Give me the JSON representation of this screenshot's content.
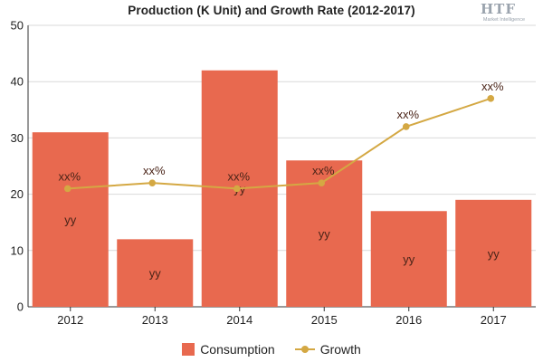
{
  "chart_data": {
    "type": "bar",
    "title": "Production (K Unit) and Growth Rate (2012-2017)",
    "categories": [
      "2012",
      "2013",
      "2014",
      "2015",
      "2016",
      "2017"
    ],
    "ylim": [
      0,
      50
    ],
    "yticks": [
      0,
      10,
      20,
      30,
      40,
      50
    ],
    "grid": true,
    "legend_position": "bottom",
    "series": [
      {
        "name": "Consumption",
        "type": "bar",
        "color": "#e8694f",
        "values": [
          31,
          12,
          42,
          26,
          17,
          19
        ],
        "labels": [
          "yy",
          "yy",
          "yy",
          "yy",
          "yy",
          "yy"
        ]
      },
      {
        "name": "Growth",
        "type": "line",
        "color": "#d4a843",
        "values": [
          21,
          22,
          21,
          22,
          32,
          37
        ],
        "labels": [
          "xx%",
          "xx%",
          "xx%",
          "xx%",
          "xx%",
          "xx%"
        ]
      }
    ]
  },
  "logo": {
    "text": "HTF",
    "subtext": "Market Intelligence"
  }
}
